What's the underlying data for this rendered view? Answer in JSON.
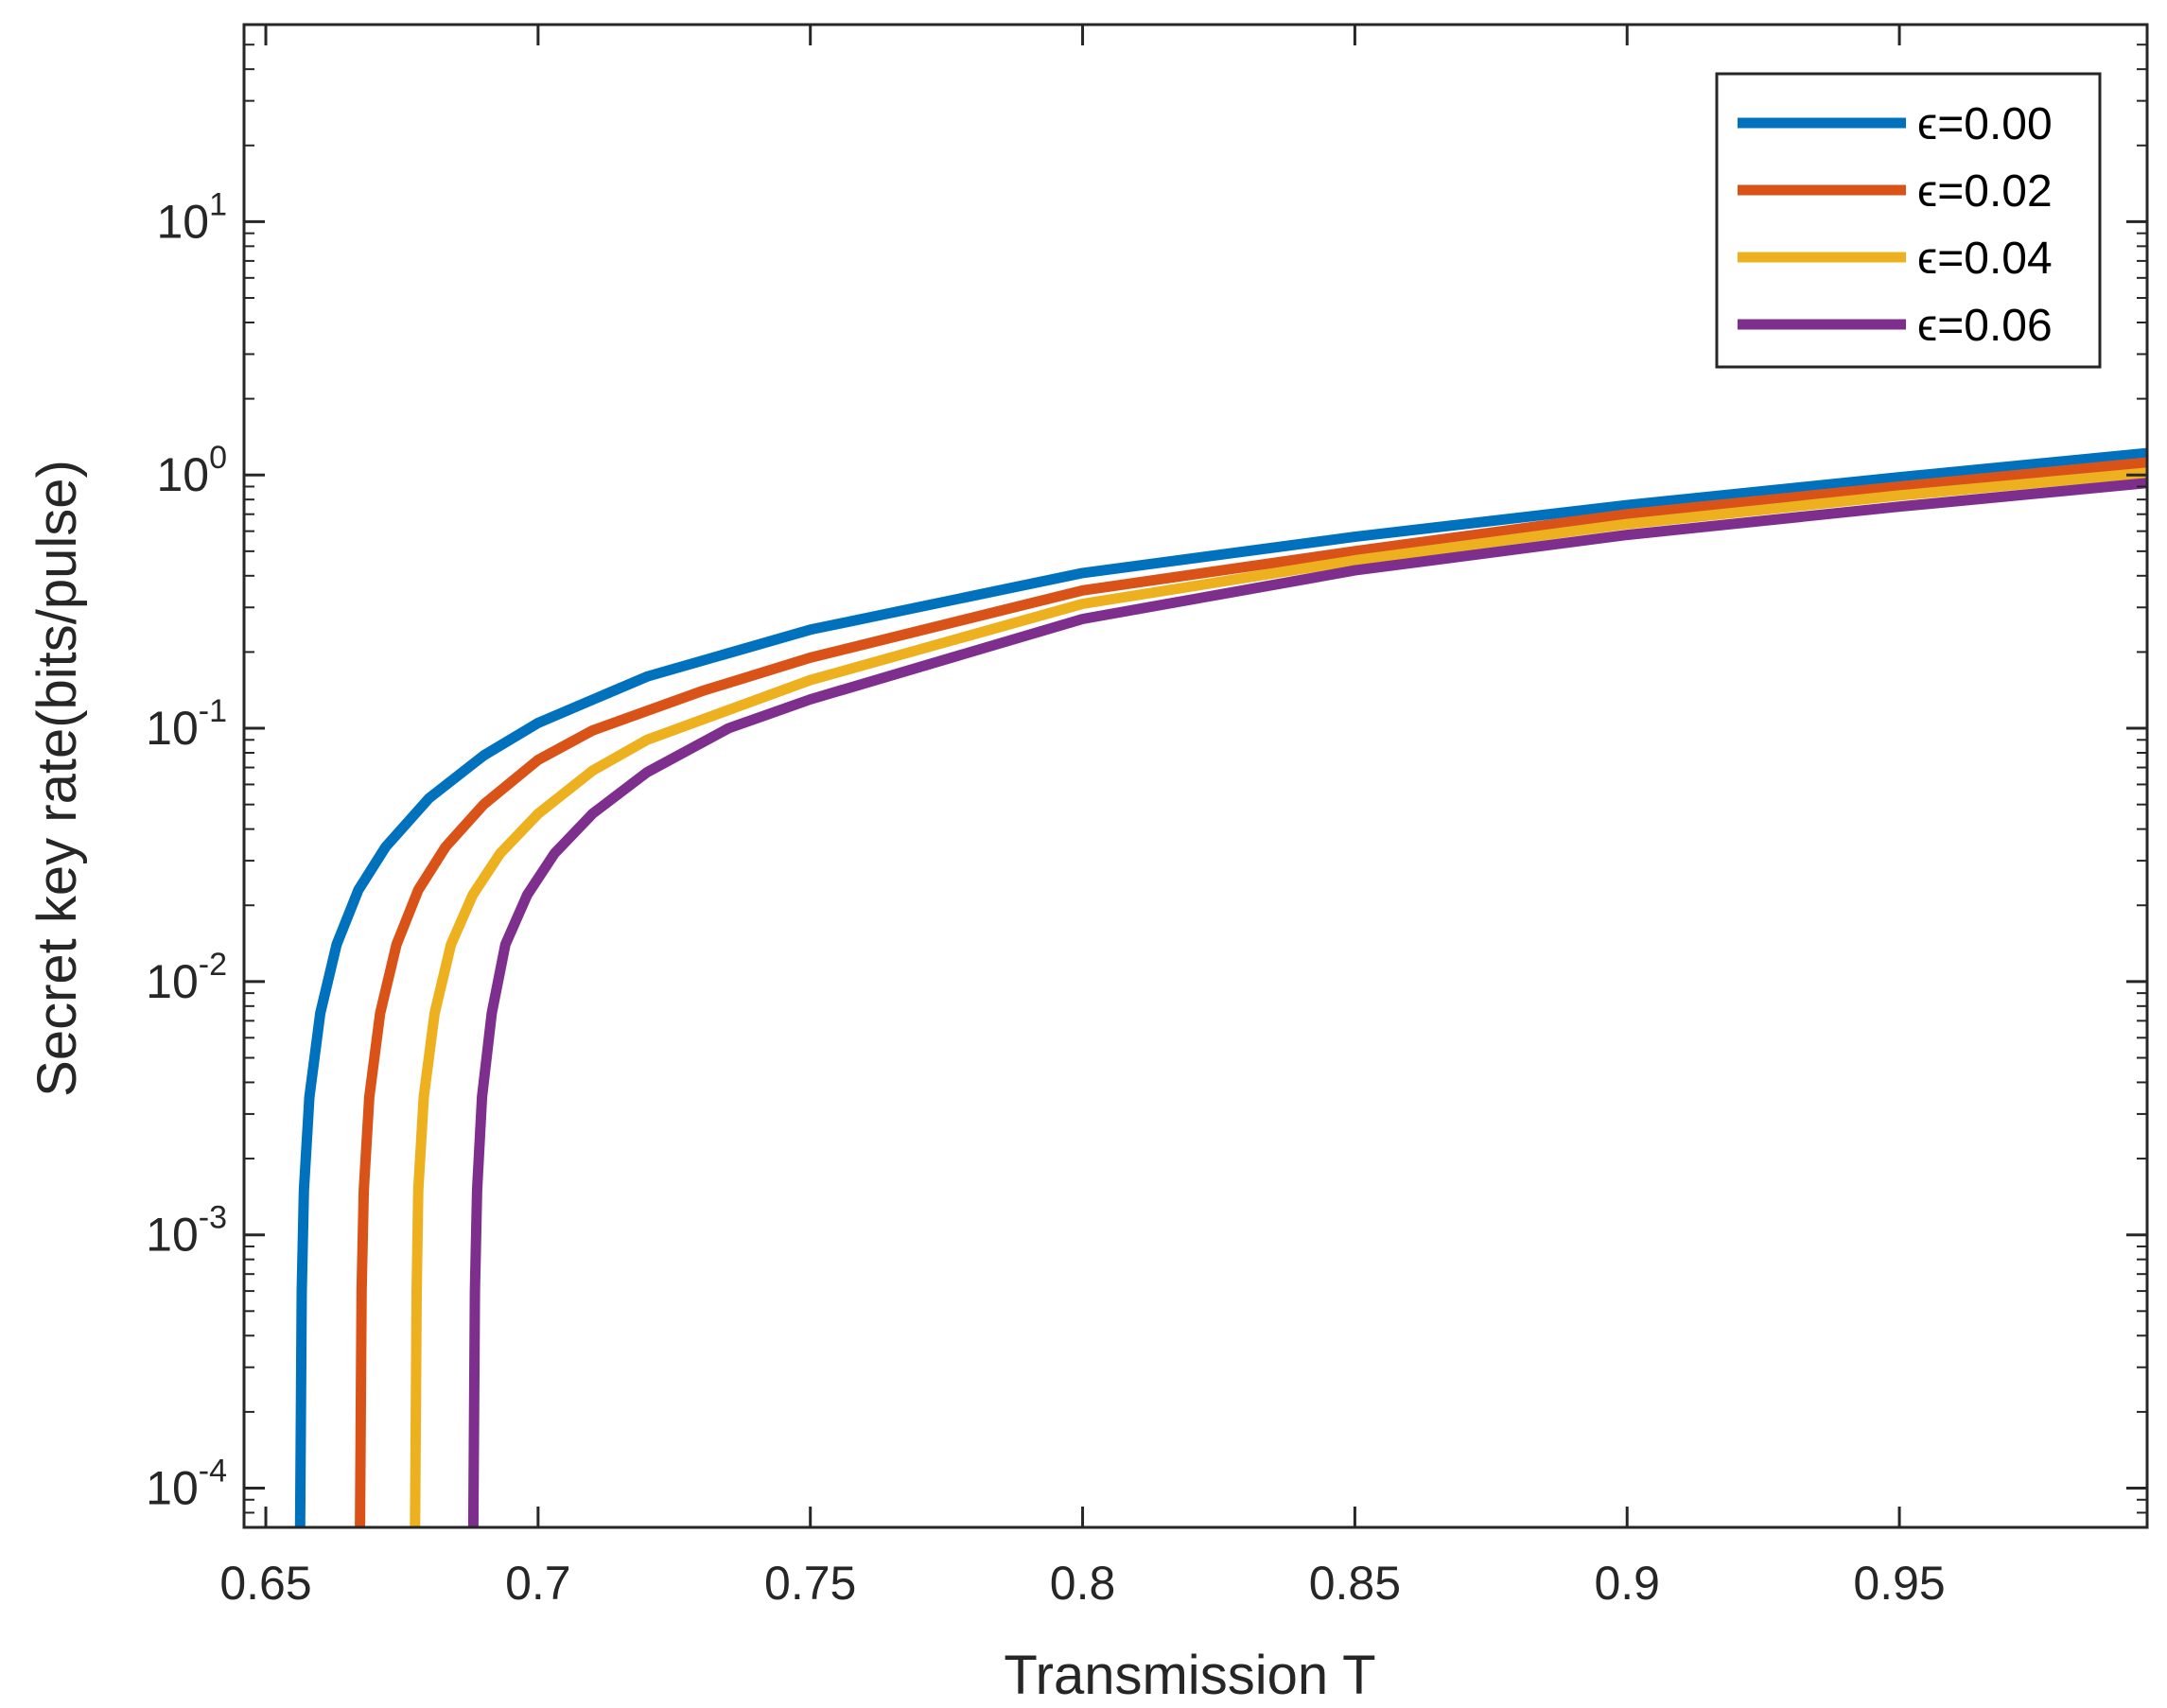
{
  "chart_data": {
    "type": "line",
    "title": "",
    "xlabel": "Transmission T",
    "ylabel": "Secret key rate(bits/pulse)",
    "xlim": [
      0.646,
      0.9955
    ],
    "ylim": [
      7e-05,
      60
    ],
    "yscale": "log",
    "x_ticks": [
      0.65,
      0.7,
      0.75,
      0.8,
      0.85,
      0.9,
      0.95
    ],
    "x_tick_labels": [
      "0.65",
      "0.7",
      "0.75",
      "0.8",
      "0.85",
      "0.9",
      "0.95"
    ],
    "y_ticks": [
      {
        "value": 0.0001,
        "base": "10",
        "exp": "-4"
      },
      {
        "value": 0.001,
        "base": "10",
        "exp": "-3"
      },
      {
        "value": 0.01,
        "base": "10",
        "exp": "-2"
      },
      {
        "value": 0.1,
        "base": "10",
        "exp": "-1"
      },
      {
        "value": 1,
        "base": "10",
        "exp": "0"
      },
      {
        "value": 10,
        "base": "10",
        "exp": "1"
      }
    ],
    "grid": false,
    "legend_position": "top-right",
    "series": [
      {
        "name": "ϵ=0.00",
        "color": "#0072BD",
        "x": [
          0.6563,
          0.6566,
          0.657,
          0.658,
          0.66,
          0.663,
          0.667,
          0.672,
          0.68,
          0.69,
          0.7,
          0.72,
          0.75,
          0.8,
          0.85,
          0.9,
          0.95,
          0.9955
        ],
        "y": [
          7e-05,
          0.0006,
          0.0015,
          0.0035,
          0.0075,
          0.014,
          0.023,
          0.034,
          0.053,
          0.078,
          0.105,
          0.16,
          0.245,
          0.41,
          0.57,
          0.76,
          0.98,
          1.22
        ]
      },
      {
        "name": "ϵ=0.02",
        "color": "#D95319",
        "x": [
          0.6673,
          0.6676,
          0.668,
          0.669,
          0.671,
          0.674,
          0.678,
          0.683,
          0.69,
          0.7,
          0.71,
          0.73,
          0.75,
          0.8,
          0.85,
          0.9,
          0.95,
          0.9955
        ],
        "y": [
          7e-05,
          0.0006,
          0.0015,
          0.0035,
          0.0075,
          0.014,
          0.023,
          0.034,
          0.05,
          0.075,
          0.098,
          0.14,
          0.19,
          0.35,
          0.5,
          0.7,
          0.9,
          1.12
        ]
      },
      {
        "name": "ϵ=0.04",
        "color": "#EDB120",
        "x": [
          0.6774,
          0.6777,
          0.678,
          0.679,
          0.681,
          0.684,
          0.688,
          0.693,
          0.7,
          0.71,
          0.72,
          0.75,
          0.8,
          0.85,
          0.9,
          0.95,
          0.9955
        ],
        "y": [
          7e-05,
          0.0006,
          0.0015,
          0.0035,
          0.0075,
          0.014,
          0.022,
          0.032,
          0.046,
          0.068,
          0.09,
          0.155,
          0.31,
          0.46,
          0.64,
          0.83,
          1.02
        ]
      },
      {
        "name": "ϵ=0.06",
        "color": "#7E2F8E",
        "x": [
          0.6881,
          0.6884,
          0.6888,
          0.6897,
          0.6915,
          0.694,
          0.698,
          0.703,
          0.71,
          0.72,
          0.735,
          0.75,
          0.8,
          0.85,
          0.9,
          0.95,
          0.9955
        ],
        "y": [
          7e-05,
          0.0006,
          0.0015,
          0.0035,
          0.0075,
          0.014,
          0.022,
          0.032,
          0.046,
          0.067,
          0.1,
          0.13,
          0.27,
          0.42,
          0.58,
          0.75,
          0.93
        ]
      }
    ]
  }
}
